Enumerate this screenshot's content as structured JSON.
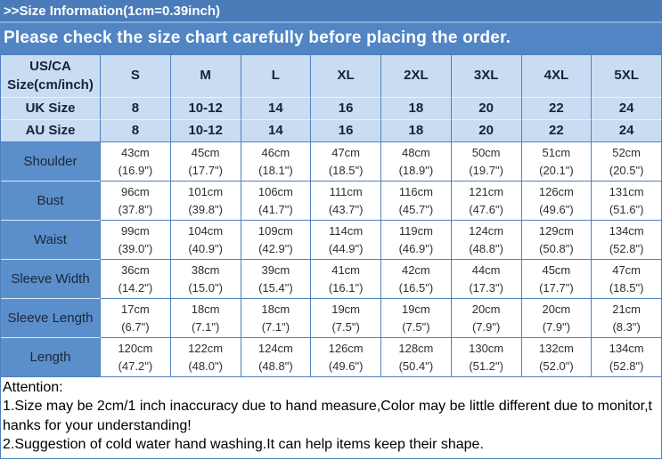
{
  "colors": {
    "bar1_bg": "#4a7cba",
    "bar2_bg": "#5285c4",
    "header_bg": "#c9dcf2",
    "label_bg": "#5b8fcb",
    "border_blue": "#4f81bd",
    "bar_text": "#ffffff"
  },
  "bar1": {
    "text": ">>Size Information(1cm=0.39inch)"
  },
  "bar2": {
    "text": "Please check the size chart carefully before placing the order."
  },
  "size_table": {
    "corner": "US/CA\nSize(cm/inch)",
    "sizes": [
      "S",
      "M",
      "L",
      "XL",
      "2XL",
      "3XL",
      "4XL",
      "5XL"
    ],
    "uk": {
      "label": "UK Size",
      "values": [
        "8",
        "10-12",
        "14",
        "16",
        "18",
        "20",
        "22",
        "24"
      ]
    },
    "au": {
      "label": "AU Size",
      "values": [
        "8",
        "10-12",
        "14",
        "16",
        "18",
        "20",
        "22",
        "24"
      ]
    },
    "measurements": [
      {
        "label": "Shoulder",
        "values": [
          "43cm\n(16.9\")",
          "45cm\n(17.7\")",
          "46cm\n(18.1\")",
          "47cm\n(18.5\")",
          "48cm\n(18.9\")",
          "50cm\n(19.7\")",
          "51cm\n(20.1\")",
          "52cm\n(20.5\")"
        ]
      },
      {
        "label": "Bust",
        "values": [
          "96cm\n(37.8\")",
          "101cm\n(39.8\")",
          "106cm\n(41.7\")",
          "111cm\n(43.7\")",
          "116cm\n(45.7\")",
          "121cm\n(47.6\")",
          "126cm\n(49.6\")",
          "131cm\n(51.6\")"
        ]
      },
      {
        "label": "Waist",
        "values": [
          "99cm\n(39.0\")",
          "104cm\n(40.9\")",
          "109cm\n(42.9\")",
          "114cm\n(44.9\")",
          "119cm\n(46.9\")",
          "124cm\n(48.8\")",
          "129cm\n(50.8\")",
          "134cm\n(52.8\")"
        ]
      },
      {
        "label": "Sleeve Width",
        "values": [
          "36cm\n(14.2\")",
          "38cm\n(15.0\")",
          "39cm\n(15.4\")",
          "41cm\n(16.1\")",
          "42cm\n(16.5\")",
          "44cm\n(17.3\")",
          "45cm\n(17.7\")",
          "47cm\n(18.5\")"
        ]
      },
      {
        "label": "Sleeve Length",
        "values": [
          "17cm\n(6.7\")",
          "18cm\n(7.1\")",
          "18cm\n(7.1\")",
          "19cm\n(7.5\")",
          "19cm\n(7.5\")",
          "20cm\n(7.9\")",
          "20cm\n(7.9\")",
          "21cm\n(8.3\")"
        ]
      },
      {
        "label": "Length",
        "values": [
          "120cm\n(47.2\")",
          "122cm\n(48.0\")",
          "124cm\n(48.8\")",
          "126cm\n(49.6\")",
          "128cm\n(50.4\")",
          "130cm\n(51.2\")",
          "132cm\n(52.0\")",
          "134cm\n(52.8\")"
        ]
      }
    ]
  },
  "attention": {
    "title": "Attention:",
    "lines": [
      "1.Size may be 2cm/1 inch inaccuracy due to hand measure,Color may be little different due to monitor,t",
      "hanks for your understanding!",
      "2.Suggestion of cold water hand washing.It can help items keep their shape."
    ]
  }
}
